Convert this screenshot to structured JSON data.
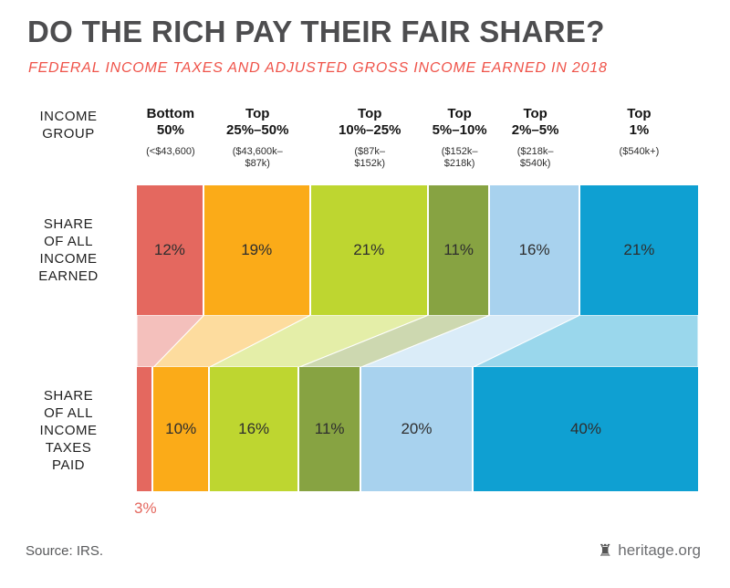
{
  "header": {
    "title": "DO THE RICH PAY THEIR FAIR SHARE?",
    "subtitle": "FEDERAL INCOME TAXES AND ADJUSTED GROSS INCOME EARNED IN 2018"
  },
  "labels": {
    "income_group": "INCOME\nGROUP",
    "income_earned": "SHARE\nOF ALL\nINCOME\nEARNED",
    "taxes_paid": "SHARE\nOF ALL\nINCOME\nTAXES\nPAID"
  },
  "chart_data": {
    "type": "bar",
    "title": "DO THE RICH PAY THEIR FAIR SHARE?",
    "subtitle": "FEDERAL INCOME TAXES AND ADJUSTED GROSS INCOME EARNED IN 2018",
    "categories": [
      "Bottom\n50%",
      "Top\n25%–50%",
      "Top\n10%–25%",
      "Top\n5%–10%",
      "Top\n2%–5%",
      "Top\n1%"
    ],
    "ranges": [
      "(<$43,600)",
      "($43,600k–\n$87k)",
      "($87k–\n$152k)",
      "($152k–\n$218k)",
      "($218k–\n$540k)",
      "($540k+)"
    ],
    "colors": [
      "#e4685f",
      "#fbab18",
      "#bed630",
      "#87a342",
      "#a8d2ee",
      "#0fa0d2"
    ],
    "series": [
      {
        "name": "SHARE OF ALL INCOME EARNED",
        "values": [
          12,
          19,
          21,
          11,
          16,
          21
        ]
      },
      {
        "name": "SHARE OF ALL INCOME TAXES PAID",
        "values": [
          3,
          10,
          16,
          11,
          20,
          40
        ]
      }
    ],
    "value_suffix": "%",
    "outside_label": {
      "text": "3%",
      "series": 1,
      "index": 0,
      "color": "#e4685f"
    },
    "flow_opacity": 0.42
  },
  "footer": {
    "source": "Source: IRS.",
    "brand": "heritage.org"
  }
}
